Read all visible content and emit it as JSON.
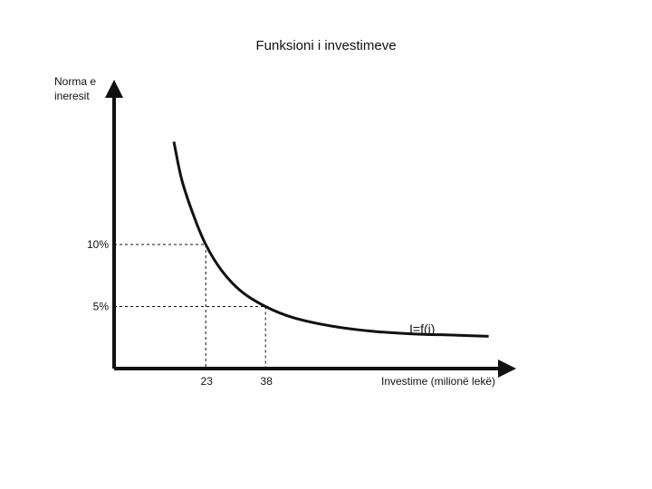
{
  "chart_data": {
    "type": "line",
    "title": "Funksioni i investimeve",
    "ylabel_lines": [
      "Norma e",
      "ineresit"
    ],
    "xlabel": "Investime (milionë lekë)",
    "curve_label": "I=f(i)",
    "y_ticks": [
      {
        "label": "10%",
        "value": 10
      },
      {
        "label": "5%",
        "value": 5
      }
    ],
    "x_ticks": [
      {
        "label": "23",
        "value": 23
      },
      {
        "label": "38",
        "value": 38
      }
    ],
    "highlight_points": [
      {
        "x": 23,
        "y": 10
      },
      {
        "x": 38,
        "y": 5
      }
    ],
    "series": [
      {
        "name": "I=f(i)",
        "x": [
          15,
          17,
          20,
          23,
          27,
          32,
          38,
          45,
          55,
          65,
          75,
          85,
          94
        ],
        "y": [
          18.3,
          15.2,
          12.3,
          10,
          7.9,
          6.2,
          5,
          4.1,
          3.4,
          3.0,
          2.8,
          2.7,
          2.6
        ]
      }
    ],
    "xlim": [
      0,
      100
    ],
    "ylim": [
      0,
      23
    ],
    "grid": false
  }
}
